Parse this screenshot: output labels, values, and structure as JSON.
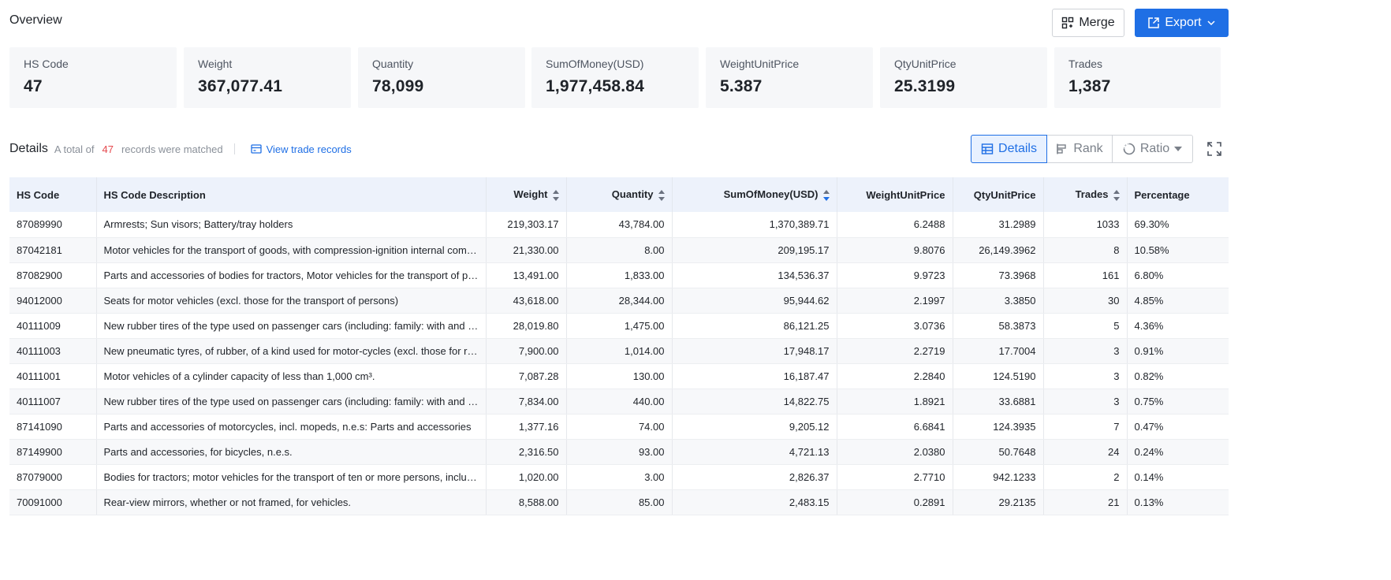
{
  "overview": {
    "title": "Overview"
  },
  "toolbar": {
    "merge_label": "Merge",
    "export_label": "Export"
  },
  "stats": [
    {
      "label": "HS Code",
      "value": "47"
    },
    {
      "label": "Weight",
      "value": "367,077.41"
    },
    {
      "label": "Quantity",
      "value": "78,099"
    },
    {
      "label": "SumOfMoney(USD)",
      "value": "1,977,458.84"
    },
    {
      "label": "WeightUnitPrice",
      "value": "5.387"
    },
    {
      "label": "QtyUnitPrice",
      "value": "25.3199"
    },
    {
      "label": "Trades",
      "value": "1,387"
    }
  ],
  "details": {
    "title": "Details",
    "prefix": "A total of",
    "count": "47",
    "suffix": "records were matched",
    "view_link": "View trade records"
  },
  "view_toggle": {
    "details": "Details",
    "rank": "Rank",
    "ratio": "Ratio"
  },
  "table": {
    "headers": [
      "HS Code",
      "HS Code Description",
      "Weight",
      "Quantity",
      "SumOfMoney(USD)",
      "WeightUnitPrice",
      "QtyUnitPrice",
      "Trades",
      "Percentage"
    ],
    "rows": [
      [
        "87089990",
        "Armrests; Sun visors; Battery/tray holders",
        "219,303.17",
        "43,784.00",
        "1,370,389.71",
        "6.2488",
        "31.2989",
        "1033",
        "69.30%"
      ],
      [
        "87042181",
        "Motor vehicles for the transport of goods, with compression-ignition internal combustion piston engine",
        "21,330.00",
        "8.00",
        "209,195.17",
        "9.8076",
        "26,149.3962",
        "8",
        "10.58%"
      ],
      [
        "87082900",
        "Parts and accessories of bodies for tractors, Motor vehicles for the transport of persons",
        "13,491.00",
        "1,833.00",
        "134,536.37",
        "9.9723",
        "73.3968",
        "161",
        "6.80%"
      ],
      [
        "94012000",
        "Seats for motor vehicles (excl. those for the transport of persons)",
        "43,618.00",
        "28,344.00",
        "95,944.62",
        "2.1997",
        "3.3850",
        "30",
        "4.85%"
      ],
      [
        "40111009",
        "New rubber tires of the type used on passenger cars (including: family: with and without tubes)",
        "28,019.80",
        "1,475.00",
        "86,121.25",
        "3.0736",
        "58.3873",
        "5",
        "4.36%"
      ],
      [
        "40111003",
        "New pneumatic tyres, of rubber, of a kind used for motor-cycles (excl. those for racing)",
        "7,900.00",
        "1,014.00",
        "17,948.17",
        "2.2719",
        "17.7004",
        "3",
        "0.91%"
      ],
      [
        "40111001",
        "Motor vehicles of a cylinder capacity of less than 1,000 cm³.",
        "7,087.28",
        "130.00",
        "16,187.47",
        "2.2840",
        "124.5190",
        "3",
        "0.82%"
      ],
      [
        "40111007",
        "New rubber tires of the type used on passenger cars (including: family: with and without tubes)",
        "7,834.00",
        "440.00",
        "14,822.75",
        "1.8921",
        "33.6881",
        "3",
        "0.75%"
      ],
      [
        "87141090",
        "Parts and accessories of motorcycles, incl. mopeds, n.e.s: Parts and accessories",
        "1,377.16",
        "74.00",
        "9,205.12",
        "6.6841",
        "124.3935",
        "7",
        "0.47%"
      ],
      [
        "87149900",
        "Parts and accessories, for bicycles, n.e.s.",
        "2,316.50",
        "93.00",
        "4,721.13",
        "2.0380",
        "50.7648",
        "24",
        "0.24%"
      ],
      [
        "87079000",
        "Bodies for tractors; motor vehicles for the transport of ten or more persons, including the driver",
        "1,020.00",
        "3.00",
        "2,826.37",
        "2.7710",
        "942.1233",
        "2",
        "0.14%"
      ],
      [
        "70091000",
        "Rear-view mirrors, whether or not framed, for vehicles.",
        "8,588.00",
        "85.00",
        "2,483.15",
        "0.2891",
        "29.2135",
        "21",
        "0.13%"
      ]
    ]
  }
}
